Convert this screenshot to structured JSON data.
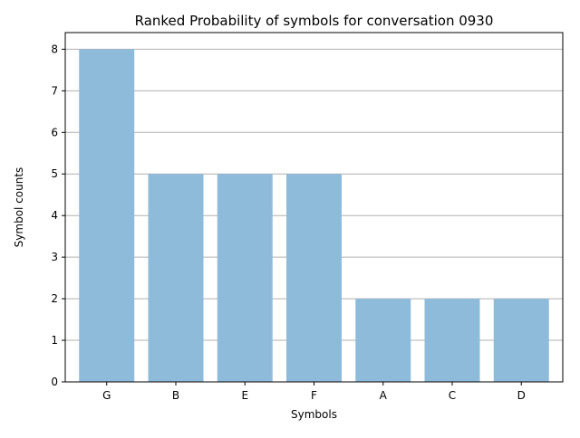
{
  "chart_data": {
    "type": "bar",
    "title": "Ranked Probability of symbols for conversation 0930",
    "xlabel": "Symbols",
    "ylabel": "Symbol counts",
    "categories": [
      "G",
      "B",
      "E",
      "F",
      "A",
      "C",
      "D"
    ],
    "values": [
      8,
      5,
      5,
      5,
      2,
      2,
      2
    ],
    "ylim": [
      0,
      8.4
    ],
    "yticks": [
      0,
      1,
      2,
      3,
      4,
      5,
      6,
      7,
      8
    ],
    "grid": "y",
    "bar_color": "#8fbbda",
    "grid_color": "#b0b0b0"
  }
}
